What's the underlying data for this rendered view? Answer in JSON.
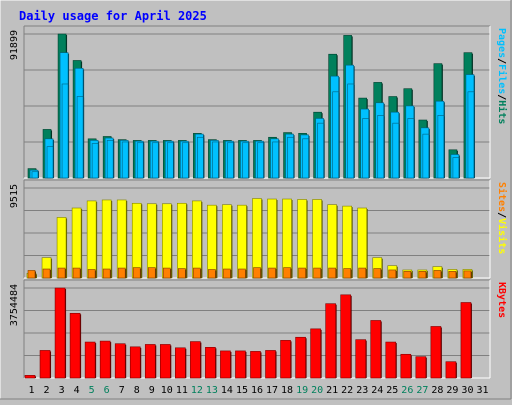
{
  "title": "Daily usage for April 2025",
  "colors": {
    "background": "#c0c0c0",
    "plot_bg": "#c0c0c0",
    "title": "#0000ff",
    "gridline": "#808080",
    "hits": "#00805c",
    "files": "#00c0ff",
    "pages": "#00c0ff",
    "visits": "#ffff00",
    "sites": "#ff8000",
    "kbytes": "#ff0000",
    "weekend_day": "#00805c",
    "weekday": "#000000"
  },
  "chart_data": [
    {
      "type": "bar",
      "panel": "top",
      "ylabel_parts": [
        "Pages",
        "/",
        "Files",
        "/",
        "Hits"
      ],
      "ylabel_colors": [
        "#00c0ff",
        "#000000",
        "#00c0ff",
        "#000000",
        "#00805c"
      ],
      "max_label": "91899",
      "ylim": [
        0,
        91899
      ],
      "categories": [
        "1",
        "2",
        "3",
        "4",
        "5",
        "6",
        "7",
        "8",
        "9",
        "10",
        "11",
        "12",
        "13",
        "14",
        "15",
        "16",
        "17",
        "18",
        "19",
        "20",
        "21",
        "22",
        "23",
        "24",
        "25",
        "26",
        "27",
        "28",
        "29",
        "30",
        "31"
      ],
      "series": [
        {
          "name": "Hits",
          "values": [
            6000,
            31000,
            91899,
            75000,
            25000,
            26500,
            24500,
            24000,
            24000,
            24000,
            24000,
            28500,
            24500,
            24000,
            24000,
            24000,
            26000,
            29000,
            28500,
            42000,
            79000,
            91000,
            51000,
            61000,
            52000,
            57000,
            37000,
            73000,
            18000,
            80000,
            0
          ]
        },
        {
          "name": "Files",
          "values": [
            5000,
            25000,
            80000,
            70000,
            24000,
            25500,
            24000,
            23500,
            23500,
            23500,
            23500,
            28000,
            24000,
            23500,
            23500,
            23500,
            25000,
            28000,
            27500,
            38000,
            65000,
            72000,
            44000,
            48000,
            42000,
            46000,
            32000,
            49000,
            15000,
            66000,
            0
          ]
        },
        {
          "name": "Pages",
          "values": [
            4000,
            20000,
            60000,
            52000,
            22000,
            24000,
            23000,
            22500,
            22500,
            22500,
            22500,
            26000,
            23000,
            22500,
            22500,
            22500,
            23000,
            26000,
            25000,
            35000,
            55000,
            60000,
            38000,
            40000,
            35000,
            38000,
            28000,
            40000,
            13000,
            55000,
            0
          ]
        }
      ]
    },
    {
      "type": "bar",
      "panel": "middle",
      "ylabel_parts": [
        "Sites",
        "/",
        "Visits"
      ],
      "ylabel_colors": [
        "#ff8000",
        "#000000",
        "#ffff00"
      ],
      "max_label": "9515",
      "ylim": [
        0,
        9515
      ],
      "categories": [
        "1",
        "2",
        "3",
        "4",
        "5",
        "6",
        "7",
        "8",
        "9",
        "10",
        "11",
        "12",
        "13",
        "14",
        "15",
        "16",
        "17",
        "18",
        "19",
        "20",
        "21",
        "22",
        "23",
        "24",
        "25",
        "26",
        "27",
        "28",
        "29",
        "30",
        "31"
      ],
      "series": [
        {
          "name": "Visits",
          "values": [
            500,
            2150,
            6400,
            7400,
            8150,
            8250,
            8250,
            7900,
            7850,
            7850,
            7900,
            8150,
            7700,
            7750,
            7700,
            8400,
            8350,
            8350,
            8300,
            8300,
            7750,
            7600,
            7400,
            2150,
            1300,
            850,
            850,
            1200,
            900,
            900,
            0
          ]
        },
        {
          "name": "Sites",
          "values": [
            800,
            950,
            1050,
            1050,
            900,
            950,
            1050,
            1100,
            1100,
            1050,
            1000,
            1050,
            900,
            950,
            950,
            1100,
            1050,
            1100,
            1050,
            1050,
            1050,
            1000,
            1050,
            1000,
            850,
            700,
            700,
            800,
            700,
            750,
            0
          ]
        }
      ]
    },
    {
      "type": "bar",
      "panel": "bottom",
      "ylabel_parts": [
        "KBytes"
      ],
      "ylabel_colors": [
        "#ff0000"
      ],
      "max_label": "3754484",
      "ylim": [
        0,
        3754484
      ],
      "categories": [
        "1",
        "2",
        "3",
        "4",
        "5",
        "6",
        "7",
        "8",
        "9",
        "10",
        "11",
        "12",
        "13",
        "14",
        "15",
        "16",
        "17",
        "18",
        "19",
        "20",
        "21",
        "22",
        "23",
        "24",
        "25",
        "26",
        "27",
        "28",
        "29",
        "30",
        "31"
      ],
      "series": [
        {
          "name": "KBytes",
          "values": [
            110000,
            1150000,
            3754484,
            2700000,
            1500000,
            1540000,
            1430000,
            1300000,
            1400000,
            1400000,
            1260000,
            1520000,
            1280000,
            1130000,
            1130000,
            1110000,
            1150000,
            1570000,
            1700000,
            2050000,
            3100000,
            3470000,
            1600000,
            2400000,
            1500000,
            990000,
            890000,
            2150000,
            680000,
            3150000,
            0
          ]
        }
      ]
    }
  ],
  "x_axis": {
    "labels": [
      "1",
      "2",
      "3",
      "4",
      "5",
      "6",
      "7",
      "8",
      "9",
      "10",
      "11",
      "12",
      "13",
      "14",
      "15",
      "16",
      "17",
      "18",
      "19",
      "20",
      "21",
      "22",
      "23",
      "24",
      "25",
      "26",
      "27",
      "28",
      "29",
      "30",
      "31"
    ],
    "weekend_days": [
      5,
      6,
      12,
      13,
      19,
      20,
      26,
      27
    ]
  }
}
